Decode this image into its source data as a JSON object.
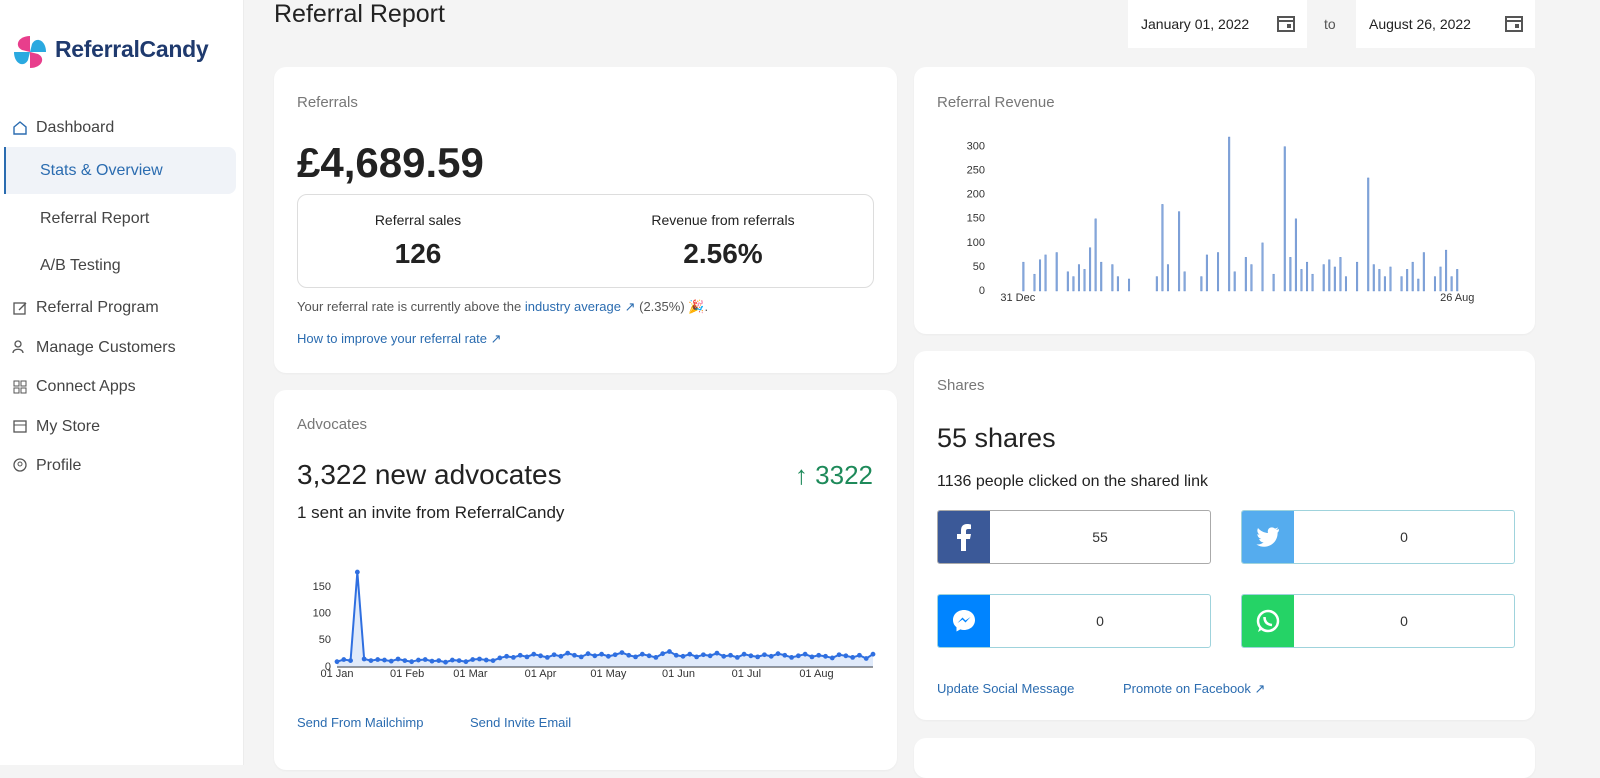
{
  "sidebar": {
    "brand": "ReferralCandy",
    "nav": [
      "Dashboard",
      "Stats & Overview",
      "Referral Report",
      "A/B Testing",
      "Referral Program",
      "Manage Customers",
      "Connect Apps",
      "My Store",
      "Profile"
    ]
  },
  "header": {
    "title": "Referral Report",
    "date_from": "January 01, 2022",
    "to": "to",
    "date_to": "August 26, 2022"
  },
  "referrals": {
    "title": "Referrals",
    "amount": "£4,689.59",
    "sales_label": "Referral sales",
    "sales": "126",
    "revenue_label": "Revenue from referrals",
    "revenue": "2.56%",
    "note_prefix": "Your referral rate is currently above the",
    "note_link": "industry average ↗",
    "note_suffix": "(2.35%) 🎉.",
    "improve_link": "How to improve your referral rate ↗"
  },
  "advocates": {
    "title": "Advocates",
    "headline": "3,322 new advocates",
    "change": "↑ 3322",
    "subtitle": "1 sent an invite from ReferralCandy",
    "links": [
      "Send From Mailchimp",
      "Send Invite Email"
    ]
  },
  "shares": {
    "title": "Shares",
    "headline": "55 shares",
    "subtitle": "1136 people clicked on the shared link",
    "counts": [
      "55",
      "0",
      "0",
      "0"
    ],
    "links": [
      "Update Social Message",
      "Promote on Facebook ↗"
    ]
  },
  "chart_data": [
    {
      "type": "bar",
      "title": "Referral Revenue",
      "color": "#86a8dc",
      "categories": [
        "31 Dec",
        null,
        null,
        null,
        null,
        null,
        null,
        null,
        null,
        null,
        null,
        null,
        null,
        null,
        null,
        null,
        null,
        null,
        null,
        null,
        null,
        null,
        null,
        null,
        null,
        null,
        null,
        null,
        null,
        null,
        null,
        null,
        null,
        null,
        null,
        null,
        null,
        null,
        null,
        null,
        null,
        null,
        null,
        null,
        null,
        null,
        null,
        null,
        null,
        null,
        null,
        null,
        null,
        null,
        null,
        null,
        null,
        null,
        null,
        null,
        null,
        null,
        null,
        null,
        null,
        null,
        null,
        null,
        null,
        null,
        null,
        null,
        null,
        null,
        null,
        null,
        null,
        null,
        null,
        "26 Aug"
      ],
      "values": [
        0,
        60,
        0,
        35,
        65,
        75,
        0,
        80,
        0,
        40,
        30,
        55,
        45,
        90,
        150,
        60,
        0,
        55,
        30,
        0,
        25,
        0,
        0,
        0,
        0,
        30,
        180,
        55,
        0,
        165,
        40,
        0,
        0,
        30,
        75,
        0,
        80,
        0,
        320,
        40,
        0,
        70,
        55,
        0,
        100,
        0,
        35,
        0,
        300,
        70,
        150,
        45,
        60,
        35,
        0,
        55,
        65,
        50,
        70,
        30,
        0,
        60,
        0,
        235,
        55,
        45,
        30,
        50,
        0,
        30,
        45,
        60,
        25,
        80,
        0,
        30,
        50,
        85,
        30,
        45
      ],
      "ylim": [
        0,
        320
      ],
      "yticks": [
        0,
        50,
        100,
        150,
        200,
        250,
        300
      ]
    },
    {
      "type": "line",
      "x": [
        0,
        3,
        6,
        9,
        12,
        15,
        18,
        21,
        24,
        27,
        30,
        33,
        36,
        39,
        42,
        45,
        48,
        51,
        54,
        57,
        60,
        63,
        66,
        69,
        72,
        75,
        78,
        81,
        84,
        87,
        90,
        93,
        96,
        99,
        102,
        105,
        108,
        111,
        114,
        117,
        120,
        123,
        126,
        129,
        132,
        135,
        138,
        141,
        144,
        147,
        150,
        153,
        156,
        159,
        162,
        165,
        168,
        171,
        174,
        177,
        180,
        183,
        186,
        189,
        192,
        195,
        198,
        201,
        204,
        207,
        210,
        213,
        216,
        219,
        222,
        225,
        228,
        231,
        234,
        237
      ],
      "series": [
        {
          "color": "#2f6fe0",
          "values": [
            10,
            14,
            12,
            178,
            15,
            12,
            14,
            13,
            11,
            15,
            12,
            10,
            13,
            14,
            11,
            12,
            9,
            13,
            12,
            10,
            14,
            15,
            13,
            12,
            17,
            20,
            18,
            22,
            19,
            24,
            21,
            18,
            23,
            20,
            26,
            22,
            19,
            25,
            21,
            24,
            20,
            23,
            27,
            22,
            19,
            24,
            21,
            18,
            25,
            29,
            22,
            20,
            24,
            19,
            23,
            21,
            26,
            20,
            22,
            18,
            24,
            21,
            19,
            23,
            20,
            25,
            22,
            18,
            21,
            24,
            19,
            22,
            20,
            17,
            23,
            21,
            18,
            22,
            16,
            24
          ]
        }
      ],
      "xlim": [
        0,
        237
      ],
      "xticks": [
        {
          "value": 0,
          "label": "01 Jan"
        },
        {
          "value": 31,
          "label": "01 Feb"
        },
        {
          "value": 59,
          "label": "01 Mar"
        },
        {
          "value": 90,
          "label": "01 Apr"
        },
        {
          "value": 120,
          "label": "01 May"
        },
        {
          "value": 151,
          "label": "01 Jun"
        },
        {
          "value": 181,
          "label": "01 Jul"
        },
        {
          "value": 212,
          "label": "01 Aug"
        }
      ],
      "ylim": [
        0,
        180
      ],
      "yticks": [
        0,
        50,
        100,
        150
      ]
    }
  ]
}
